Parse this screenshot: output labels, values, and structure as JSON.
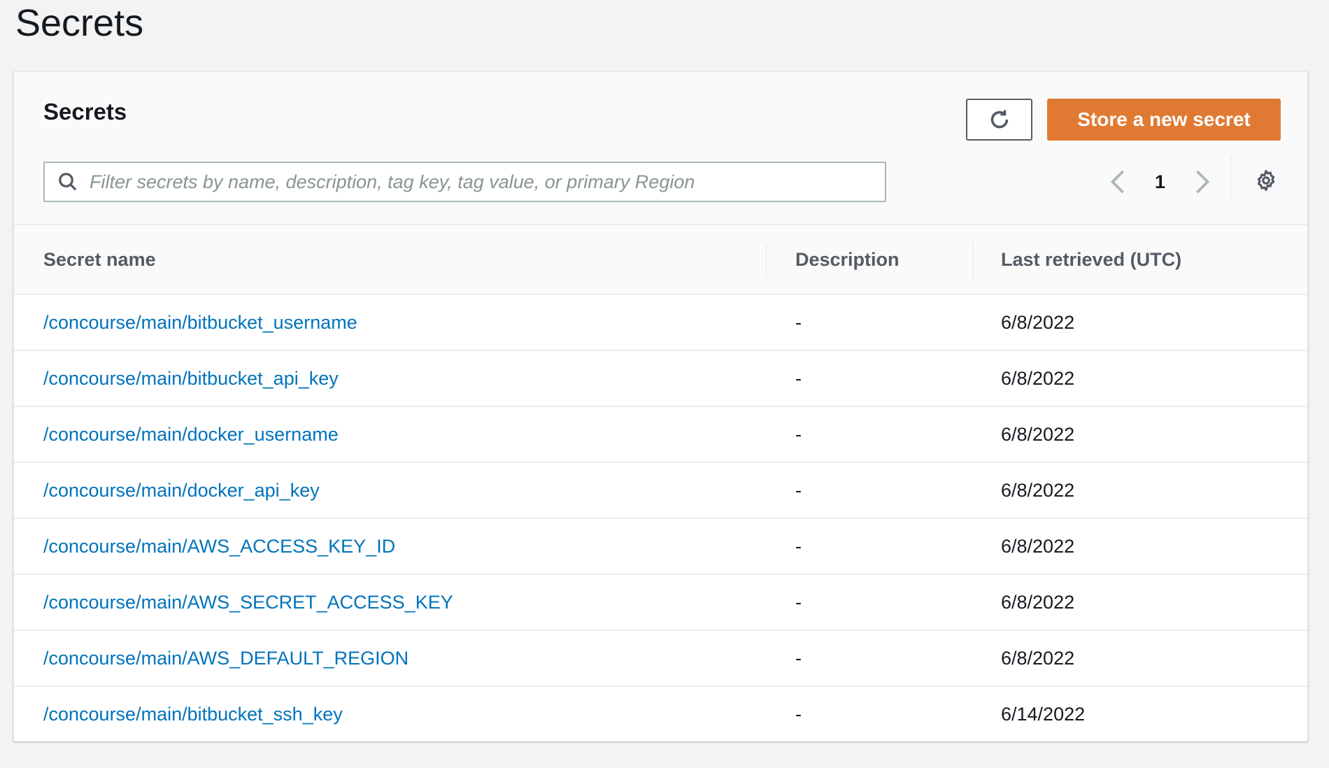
{
  "page": {
    "title": "Secrets"
  },
  "card": {
    "title": "Secrets",
    "store_button": "Store a new secret",
    "search_placeholder": "Filter secrets by name, description, tag key, tag value, or primary Region",
    "current_page": "1",
    "accent_color": "#e07a32",
    "link_color": "#0073bb"
  },
  "table": {
    "columns": [
      "Secret name",
      "Description",
      "Last retrieved (UTC)"
    ],
    "rows": [
      {
        "name": "/concourse/main/bitbucket_username",
        "description": "-",
        "last_retrieved": "6/8/2022"
      },
      {
        "name": "/concourse/main/bitbucket_api_key",
        "description": "-",
        "last_retrieved": "6/8/2022"
      },
      {
        "name": "/concourse/main/docker_username",
        "description": "-",
        "last_retrieved": "6/8/2022"
      },
      {
        "name": "/concourse/main/docker_api_key",
        "description": "-",
        "last_retrieved": "6/8/2022"
      },
      {
        "name": "/concourse/main/AWS_ACCESS_KEY_ID",
        "description": "-",
        "last_retrieved": "6/8/2022"
      },
      {
        "name": "/concourse/main/AWS_SECRET_ACCESS_KEY",
        "description": "-",
        "last_retrieved": "6/8/2022"
      },
      {
        "name": "/concourse/main/AWS_DEFAULT_REGION",
        "description": "-",
        "last_retrieved": "6/8/2022"
      },
      {
        "name": "/concourse/main/bitbucket_ssh_key",
        "description": "-",
        "last_retrieved": "6/14/2022"
      }
    ]
  }
}
